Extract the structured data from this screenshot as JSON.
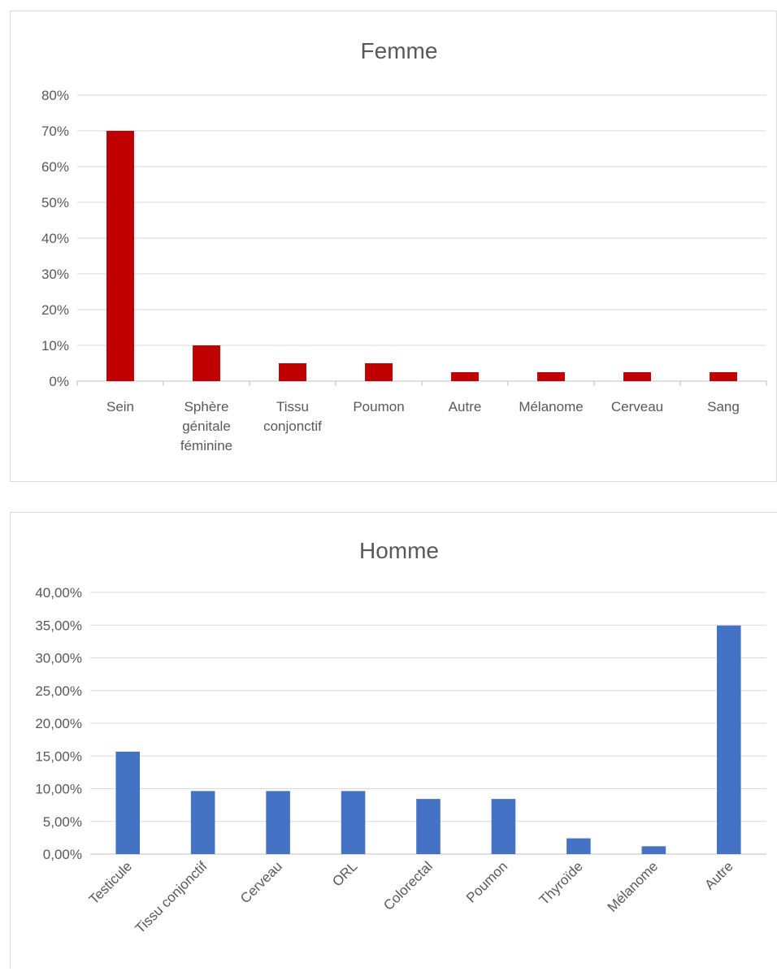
{
  "chart_data": [
    {
      "type": "bar",
      "title": "Femme",
      "categories": [
        [
          "Sein"
        ],
        [
          "Sphère",
          "génitale",
          "féminine"
        ],
        [
          "Tissu",
          "conjonctif"
        ],
        [
          "Poumon"
        ],
        [
          "Autre"
        ],
        [
          "Mélanome"
        ],
        [
          "Cerveau"
        ],
        [
          "Sang"
        ]
      ],
      "values": [
        70,
        10,
        5,
        5,
        2.5,
        2.5,
        2.5,
        2.5
      ],
      "ylim": [
        0,
        80
      ],
      "yticks": [
        0,
        10,
        20,
        30,
        40,
        50,
        60,
        70,
        80
      ],
      "ytick_labels": [
        "0%",
        "10%",
        "20%",
        "30%",
        "40%",
        "50%",
        "60%",
        "70%",
        "80%"
      ],
      "xlabel": "",
      "ylabel": "",
      "color": "#c00000",
      "grid": true,
      "label_rotation": 0
    },
    {
      "type": "bar",
      "title": "Homme",
      "categories": [
        [
          "Testicule"
        ],
        [
          "Tissu conjonctif"
        ],
        [
          "Cerveau"
        ],
        [
          "ORL"
        ],
        [
          "Colorectal"
        ],
        [
          "Poumon"
        ],
        [
          "Thyroïde"
        ],
        [
          "Mélanome"
        ],
        [
          "Autre"
        ]
      ],
      "values": [
        15.66,
        9.64,
        9.64,
        9.64,
        8.43,
        8.43,
        2.41,
        1.2,
        34.94
      ],
      "ylim": [
        0,
        40
      ],
      "yticks": [
        0,
        5,
        10,
        15,
        20,
        25,
        30,
        35,
        40
      ],
      "ytick_labels": [
        "0,00%",
        "5,00%",
        "10,00%",
        "15,00%",
        "20,00%",
        "25,00%",
        "30,00%",
        "35,00%",
        "40,00%"
      ],
      "xlabel": "",
      "ylabel": "",
      "color": "#4472c4",
      "grid": true,
      "label_rotation": -45
    }
  ]
}
